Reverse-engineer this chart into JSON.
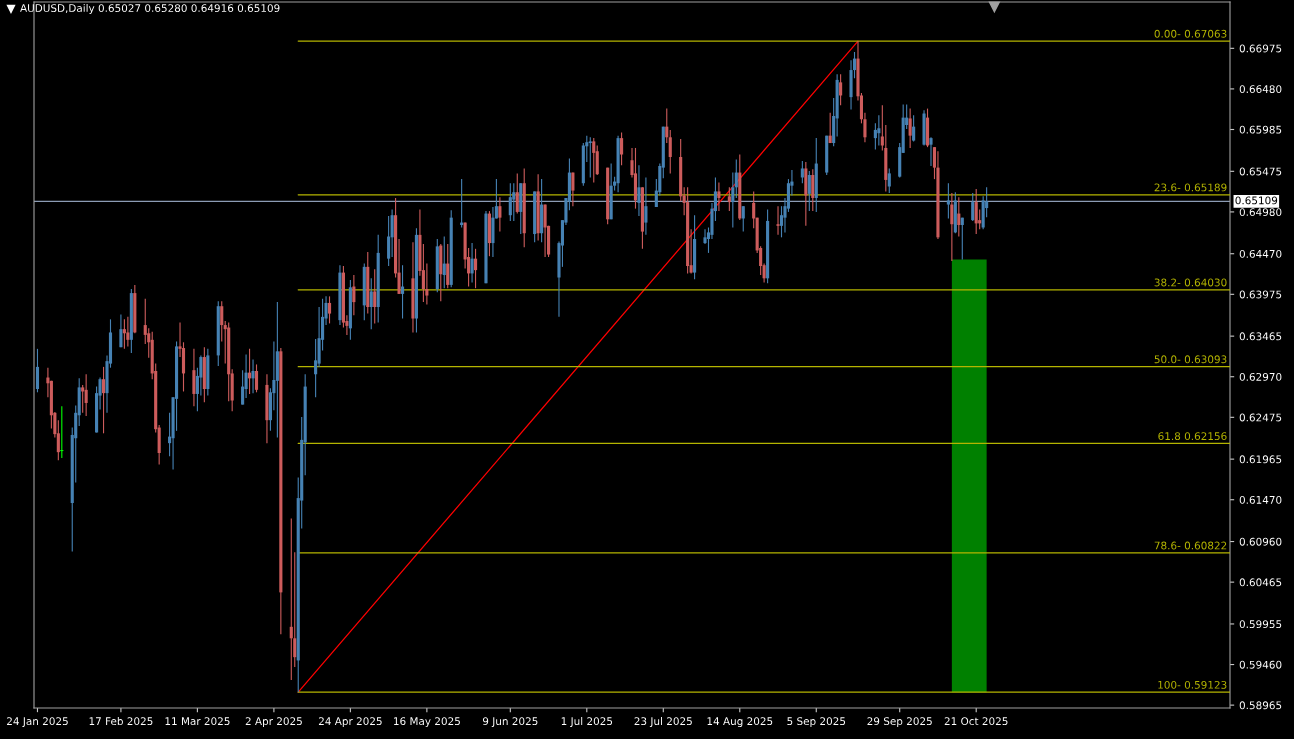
{
  "chart_data": {
    "type": "candlestick",
    "title": "AUDUSD,Daily 0.65027 0.65280 0.64916 0.65109",
    "xlim": [
      "2025-01-23",
      "2026-01-02"
    ],
    "xticks": [
      {
        "value": "2025-01-24",
        "label": "24 Jan 2025"
      },
      {
        "value": "2025-02-17",
        "label": "17 Feb 2025"
      },
      {
        "value": "2025-03-11",
        "label": "11 Mar 2025"
      },
      {
        "value": "2025-04-02",
        "label": "2 Apr 2025"
      },
      {
        "value": "2025-04-24",
        "label": "24 Apr 2025"
      },
      {
        "value": "2025-05-16",
        "label": "16 May 2025"
      },
      {
        "value": "2025-06-09",
        "label": "9 Jun 2025"
      },
      {
        "value": "2025-07-01",
        "label": "1 Jul 2025"
      },
      {
        "value": "2025-07-23",
        "label": "23 Jul 2025"
      },
      {
        "value": "2025-08-14",
        "label": "14 Aug 2025"
      },
      {
        "value": "2025-09-05",
        "label": "5 Sep 2025"
      },
      {
        "value": "2025-09-29",
        "label": "29 Sep 2025"
      },
      {
        "value": "2025-10-21",
        "label": "21 Oct 2025"
      }
    ],
    "ylim": [
      0.5893,
      0.6754
    ],
    "yticks": [
      0.66975,
      {
        "value": 0.6648,
        "label": "0.66480"
      },
      0.65985,
      0.65475,
      {
        "value": 0.6498,
        "label": "0.64980"
      },
      {
        "value": 0.6447,
        "label": "0.64470"
      },
      0.63975,
      0.63465,
      {
        "value": 0.6297,
        "label": "0.62970"
      },
      0.62475,
      0.61965,
      {
        "value": 0.6147,
        "label": "0.61470"
      },
      {
        "value": 0.6096,
        "label": "0.60960"
      },
      0.60465,
      0.59955,
      {
        "value": 0.5946,
        "label": "0.59460"
      },
      0.58965
    ],
    "ref_lines": [
      {
        "axis": "y",
        "value": 0.65109,
        "label": "0.65109",
        "color": "#8c9cb4"
      }
    ],
    "series": [
      {
        "x": [
          "2025-01-24",
          "2025-01-27",
          "2025-01-28",
          "2025-01-29",
          "2025-01-30",
          "2025-01-31",
          "2025-02-03",
          "2025-02-04",
          "2025-02-05",
          "2025-02-06",
          "2025-02-07",
          "2025-02-10",
          "2025-02-11",
          "2025-02-12",
          "2025-02-13",
          "2025-02-14",
          "2025-02-17",
          "2025-02-18",
          "2025-02-19",
          "2025-02-20",
          "2025-02-21",
          "2025-02-24",
          "2025-02-25",
          "2025-02-26",
          "2025-02-27",
          "2025-02-28",
          "2025-03-03",
          "2025-03-04",
          "2025-03-05",
          "2025-03-06",
          "2025-03-07",
          "2025-03-10",
          "2025-03-11",
          "2025-03-12",
          "2025-03-13",
          "2025-03-14",
          "2025-03-17",
          "2025-03-18",
          "2025-03-19",
          "2025-03-20",
          "2025-03-21",
          "2025-03-24",
          "2025-03-25",
          "2025-03-26",
          "2025-03-27",
          "2025-03-28",
          "2025-03-31",
          "2025-04-01",
          "2025-04-02",
          "2025-04-03",
          "2025-04-04",
          "2025-04-07",
          "2025-04-08",
          "2025-04-09",
          "2025-04-10",
          "2025-04-11",
          "2025-04-14",
          "2025-04-15",
          "2025-04-16",
          "2025-04-17",
          "2025-04-18",
          "2025-04-21",
          "2025-04-22",
          "2025-04-23",
          "2025-04-24",
          "2025-04-25",
          "2025-04-28",
          "2025-04-29",
          "2025-04-30",
          "2025-05-01",
          "2025-05-02",
          "2025-05-05",
          "2025-05-06",
          "2025-05-07",
          "2025-05-08",
          "2025-05-09",
          "2025-05-12",
          "2025-05-13",
          "2025-05-14",
          "2025-05-15",
          "2025-05-16",
          "2025-05-19",
          "2025-05-20",
          "2025-05-21",
          "2025-05-22",
          "2025-05-23",
          "2025-05-26",
          "2025-05-27",
          "2025-05-28",
          "2025-05-29",
          "2025-05-30",
          "2025-06-02",
          "2025-06-03",
          "2025-06-04",
          "2025-06-05",
          "2025-06-06",
          "2025-06-09",
          "2025-06-10",
          "2025-06-11",
          "2025-06-12",
          "2025-06-13",
          "2025-06-16",
          "2025-06-17",
          "2025-06-18",
          "2025-06-19",
          "2025-06-20",
          "2025-06-23",
          "2025-06-24",
          "2025-06-25",
          "2025-06-26",
          "2025-06-27",
          "2025-06-30",
          "2025-07-01",
          "2025-07-02",
          "2025-07-03",
          "2025-07-04",
          "2025-07-07",
          "2025-07-08",
          "2025-07-09",
          "2025-07-10",
          "2025-07-11",
          "2025-07-14",
          "2025-07-15",
          "2025-07-16",
          "2025-07-17",
          "2025-07-18",
          "2025-07-21",
          "2025-07-22",
          "2025-07-23",
          "2025-07-24",
          "2025-07-25",
          "2025-07-28",
          "2025-07-29",
          "2025-07-30",
          "2025-07-31",
          "2025-08-01",
          "2025-08-04",
          "2025-08-05",
          "2025-08-06",
          "2025-08-07",
          "2025-08-08",
          "2025-08-11",
          "2025-08-12",
          "2025-08-13",
          "2025-08-14",
          "2025-08-15",
          "2025-08-18",
          "2025-08-19",
          "2025-08-20",
          "2025-08-21",
          "2025-08-22",
          "2025-08-25",
          "2025-08-26",
          "2025-08-27",
          "2025-08-28",
          "2025-08-29",
          "2025-09-01",
          "2025-09-02",
          "2025-09-03",
          "2025-09-04",
          "2025-09-05",
          "2025-09-08",
          "2025-09-09",
          "2025-09-10",
          "2025-09-11",
          "2025-09-12",
          "2025-09-15",
          "2025-09-16",
          "2025-09-17",
          "2025-09-18",
          "2025-09-19",
          "2025-09-22",
          "2025-09-23",
          "2025-09-24",
          "2025-09-25",
          "2025-09-26",
          "2025-09-29",
          "2025-09-30",
          "2025-10-01",
          "2025-10-02",
          "2025-10-03",
          "2025-10-06",
          "2025-10-07",
          "2025-10-08",
          "2025-10-09",
          "2025-10-10",
          "2025-10-13",
          "2025-10-14",
          "2025-10-15",
          "2025-10-16",
          "2025-10-17",
          "2025-10-20",
          "2025-10-21",
          "2025-10-22",
          "2025-10-23",
          "2025-10-24"
        ],
        "ohlc": [
          [
            0.6282,
            0.6331,
            0.6278,
            0.6309
          ],
          [
            0.6296,
            0.6308,
            0.6272,
            0.6289
          ],
          [
            0.6292,
            0.6292,
            0.6234,
            0.625
          ],
          [
            0.6253,
            0.6254,
            0.6223,
            0.6227
          ],
          [
            0.6228,
            0.6244,
            0.6195,
            0.6205
          ],
          [
            0.6207,
            0.6261,
            0.6198,
            0.6207
          ],
          [
            0.6143,
            0.6235,
            0.6084,
            0.6226
          ],
          [
            0.6222,
            0.6262,
            0.6168,
            0.6253
          ],
          [
            0.625,
            0.6295,
            0.6237,
            0.6284
          ],
          [
            0.6284,
            0.6287,
            0.6253,
            0.6279
          ],
          [
            0.6281,
            0.63,
            0.6249,
            0.6265
          ],
          [
            0.6229,
            0.6285,
            0.6229,
            0.6277
          ],
          [
            0.6274,
            0.6296,
            0.6257,
            0.6294
          ],
          [
            0.6294,
            0.6309,
            0.6228,
            0.6277
          ],
          [
            0.6277,
            0.6323,
            0.6253,
            0.6316
          ],
          [
            0.6313,
            0.6367,
            0.6308,
            0.6351
          ],
          [
            0.6333,
            0.6373,
            0.6333,
            0.6355
          ],
          [
            0.6355,
            0.6367,
            0.6331,
            0.635
          ],
          [
            0.6351,
            0.637,
            0.6334,
            0.6342
          ],
          [
            0.6342,
            0.6404,
            0.6326,
            0.6399
          ],
          [
            0.6399,
            0.6409,
            0.635,
            0.6351
          ],
          [
            0.636,
            0.6392,
            0.6337,
            0.6348
          ],
          [
            0.635,
            0.6356,
            0.632,
            0.6339
          ],
          [
            0.6342,
            0.6352,
            0.6294,
            0.6301
          ],
          [
            0.6304,
            0.6313,
            0.6229,
            0.6233
          ],
          [
            0.6235,
            0.6238,
            0.619,
            0.6204
          ],
          [
            0.6216,
            0.6253,
            0.62,
            0.6224
          ],
          [
            0.6222,
            0.6272,
            0.6184,
            0.6272
          ],
          [
            0.627,
            0.634,
            0.6231,
            0.6334
          ],
          [
            0.6334,
            0.6363,
            0.6321,
            0.6331
          ],
          [
            0.6332,
            0.6339,
            0.6279,
            0.6301
          ],
          [
            0.6305,
            0.6331,
            0.6261,
            0.6276
          ],
          [
            0.6276,
            0.6308,
            0.6255,
            0.6298
          ],
          [
            0.6296,
            0.6323,
            0.6274,
            0.6321
          ],
          [
            0.6321,
            0.6333,
            0.6266,
            0.6282
          ],
          [
            0.6282,
            0.6331,
            0.6274,
            0.6323
          ],
          [
            0.6323,
            0.6389,
            0.631,
            0.6383
          ],
          [
            0.6383,
            0.6389,
            0.634,
            0.636
          ],
          [
            0.636,
            0.6365,
            0.6313,
            0.6355
          ],
          [
            0.6357,
            0.6363,
            0.6267,
            0.63
          ],
          [
            0.6301,
            0.6306,
            0.6255,
            0.6268
          ],
          [
            0.6263,
            0.6305,
            0.6263,
            0.6285
          ],
          [
            0.6282,
            0.6324,
            0.6271,
            0.6302
          ],
          [
            0.6302,
            0.6331,
            0.6276,
            0.6295
          ],
          [
            0.6295,
            0.6318,
            0.6277,
            0.6304
          ],
          [
            0.6304,
            0.6312,
            0.6278,
            0.6281
          ],
          [
            0.6287,
            0.63,
            0.6216,
            0.6244
          ],
          [
            0.6244,
            0.6283,
            0.6231,
            0.6278
          ],
          [
            0.6277,
            0.634,
            0.6256,
            0.6293
          ],
          [
            0.6292,
            0.6388,
            0.6223,
            0.6328
          ],
          [
            0.6328,
            0.6332,
            0.5983,
            0.6034
          ],
          [
            0.5992,
            0.6124,
            0.5927,
            0.5978
          ],
          [
            0.5978,
            0.6083,
            0.5943,
            0.5955
          ],
          [
            0.5951,
            0.6174,
            0.59123,
            0.6149
          ],
          [
            0.6146,
            0.6248,
            0.6112,
            0.622
          ],
          [
            0.6217,
            0.63,
            0.6177,
            0.6285
          ],
          [
            0.63,
            0.6343,
            0.6272,
            0.6317
          ],
          [
            0.6313,
            0.6382,
            0.6309,
            0.6344
          ],
          [
            0.6342,
            0.6392,
            0.6329,
            0.637
          ],
          [
            0.6368,
            0.6395,
            0.636,
            0.6387
          ],
          [
            0.6387,
            0.6395,
            0.6362,
            0.6374
          ],
          [
            0.6366,
            0.6433,
            0.636,
            0.6424
          ],
          [
            0.6424,
            0.6432,
            0.6357,
            0.6363
          ],
          [
            0.6365,
            0.6372,
            0.6348,
            0.6359
          ],
          [
            0.6356,
            0.6415,
            0.6342,
            0.6406
          ],
          [
            0.6407,
            0.6421,
            0.6372,
            0.6388
          ],
          [
            0.6384,
            0.6435,
            0.6366,
            0.6431
          ],
          [
            0.6431,
            0.6449,
            0.6374,
            0.6382
          ],
          [
            0.6382,
            0.6417,
            0.6355,
            0.6401
          ],
          [
            0.6401,
            0.6428,
            0.6362,
            0.6382
          ],
          [
            0.6382,
            0.647,
            0.6363,
            0.6448
          ],
          [
            0.6441,
            0.6493,
            0.6432,
            0.6468
          ],
          [
            0.6467,
            0.6501,
            0.6443,
            0.6494
          ],
          [
            0.6494,
            0.6515,
            0.6418,
            0.6423
          ],
          [
            0.6424,
            0.6465,
            0.6398,
            0.6398
          ],
          [
            0.6398,
            0.6433,
            0.6368,
            0.6407
          ],
          [
            0.6417,
            0.6461,
            0.6351,
            0.6368
          ],
          [
            0.6368,
            0.6478,
            0.6351,
            0.647
          ],
          [
            0.647,
            0.6501,
            0.642,
            0.6426
          ],
          [
            0.6427,
            0.6459,
            0.6388,
            0.6404
          ],
          [
            0.6404,
            0.6435,
            0.6385,
            0.6396
          ],
          [
            0.6404,
            0.6465,
            0.64,
            0.6456
          ],
          [
            0.6457,
            0.6459,
            0.6389,
            0.6422
          ],
          [
            0.6421,
            0.6468,
            0.6405,
            0.6435
          ],
          [
            0.6435,
            0.6459,
            0.6405,
            0.6409
          ],
          [
            0.6409,
            0.65,
            0.6406,
            0.6491
          ],
          [
            0.6482,
            0.6538,
            0.6479,
            0.6485
          ],
          [
            0.6485,
            0.6485,
            0.6429,
            0.644
          ],
          [
            0.6443,
            0.6454,
            0.6407,
            0.6423
          ],
          [
            0.6423,
            0.646,
            0.6412,
            0.6441
          ],
          [
            0.6441,
            0.6453,
            0.6405,
            0.6427
          ],
          [
            0.6411,
            0.6499,
            0.6411,
            0.6496
          ],
          [
            0.6496,
            0.6499,
            0.6444,
            0.646
          ],
          [
            0.646,
            0.6504,
            0.6443,
            0.6491
          ],
          [
            0.649,
            0.6538,
            0.649,
            0.6505
          ],
          [
            0.6505,
            0.6516,
            0.6474,
            0.6491
          ],
          [
            0.6494,
            0.6533,
            0.6487,
            0.6516
          ],
          [
            0.6513,
            0.6533,
            0.6487,
            0.6522
          ],
          [
            0.6522,
            0.6545,
            0.6496,
            0.6498
          ],
          [
            0.6498,
            0.6533,
            0.6471,
            0.6533
          ],
          [
            0.6533,
            0.6551,
            0.6455,
            0.6472
          ],
          [
            0.6471,
            0.6523,
            0.6461,
            0.6523
          ],
          [
            0.6523,
            0.6544,
            0.6463,
            0.6472
          ],
          [
            0.6472,
            0.6538,
            0.6461,
            0.6507
          ],
          [
            0.6507,
            0.6507,
            0.6443,
            0.6479
          ],
          [
            0.6481,
            0.6481,
            0.6443,
            0.6446
          ],
          [
            0.6418,
            0.6462,
            0.637,
            0.646
          ],
          [
            0.6457,
            0.6488,
            0.6431,
            0.6488
          ],
          [
            0.6485,
            0.6515,
            0.6482,
            0.6515
          ],
          [
            0.6511,
            0.6563,
            0.65,
            0.6546
          ],
          [
            0.6546,
            0.6546,
            0.6505,
            0.6524
          ],
          [
            0.6533,
            0.6582,
            0.653,
            0.6579
          ],
          [
            0.6578,
            0.6591,
            0.6559,
            0.6583
          ],
          [
            0.6582,
            0.6589,
            0.654,
            0.6584
          ],
          [
            0.6584,
            0.6588,
            0.6534,
            0.657
          ],
          [
            0.6572,
            0.6579,
            0.6543,
            0.6544
          ],
          [
            0.6552,
            0.6552,
            0.6483,
            0.6489
          ],
          [
            0.6489,
            0.6557,
            0.6489,
            0.653
          ],
          [
            0.653,
            0.6541,
            0.6524,
            0.6535
          ],
          [
            0.6533,
            0.6591,
            0.6522,
            0.6588
          ],
          [
            0.6588,
            0.6595,
            0.6555,
            0.6568
          ],
          [
            0.6561,
            0.6576,
            0.654,
            0.6543
          ],
          [
            0.6545,
            0.6576,
            0.6502,
            0.6512
          ],
          [
            0.6509,
            0.6555,
            0.6493,
            0.6528
          ],
          [
            0.6528,
            0.6528,
            0.6453,
            0.6474
          ],
          [
            0.6485,
            0.654,
            0.647,
            0.6505
          ],
          [
            0.6504,
            0.6538,
            0.6504,
            0.6524
          ],
          [
            0.6522,
            0.6557,
            0.6518,
            0.6554
          ],
          [
            0.6552,
            0.6602,
            0.6539,
            0.6602
          ],
          [
            0.6602,
            0.6624,
            0.6582,
            0.6589
          ],
          [
            0.6589,
            0.6598,
            0.6545,
            0.6565
          ],
          [
            0.6565,
            0.6587,
            0.6511,
            0.6517
          ],
          [
            0.6518,
            0.6528,
            0.6494,
            0.6509
          ],
          [
            0.651,
            0.6528,
            0.6423,
            0.6432
          ],
          [
            0.6433,
            0.6477,
            0.6423,
            0.6424
          ],
          [
            0.6424,
            0.6494,
            0.6416,
            0.6465
          ],
          [
            0.646,
            0.6477,
            0.6459,
            0.6467
          ],
          [
            0.6465,
            0.6479,
            0.6448,
            0.6473
          ],
          [
            0.647,
            0.6509,
            0.6465,
            0.6502
          ],
          [
            0.6499,
            0.654,
            0.6487,
            0.6523
          ],
          [
            0.6523,
            0.6534,
            0.6499,
            0.6515
          ],
          [
            0.6517,
            0.6528,
            0.6499,
            0.651
          ],
          [
            0.651,
            0.6546,
            0.6479,
            0.6528
          ],
          [
            0.6528,
            0.6562,
            0.6515,
            0.6546
          ],
          [
            0.6546,
            0.6568,
            0.6488,
            0.649
          ],
          [
            0.649,
            0.6505,
            0.6474,
            0.6505
          ],
          [
            0.6509,
            0.6523,
            0.6478,
            0.649
          ],
          [
            0.6491,
            0.6491,
            0.6448,
            0.6451
          ],
          [
            0.6454,
            0.6456,
            0.6421,
            0.6432
          ],
          [
            0.6433,
            0.6435,
            0.6412,
            0.6417
          ],
          [
            0.6417,
            0.6501,
            0.6411,
            0.6487
          ],
          [
            0.6483,
            0.6505,
            0.647,
            0.6481
          ],
          [
            0.6481,
            0.6505,
            0.6467,
            0.6494
          ],
          [
            0.6491,
            0.6515,
            0.6473,
            0.6505
          ],
          [
            0.6502,
            0.6538,
            0.6498,
            0.6533
          ],
          [
            0.653,
            0.6549,
            0.6518,
            0.6535
          ],
          [
            0.654,
            0.656,
            0.6533,
            0.6551
          ],
          [
            0.6551,
            0.6559,
            0.6481,
            0.6518
          ],
          [
            0.652,
            0.6548,
            0.6499,
            0.6543
          ],
          [
            0.6543,
            0.655,
            0.6499,
            0.6515
          ],
          [
            0.6515,
            0.6588,
            0.6498,
            0.6557
          ],
          [
            0.6546,
            0.6591,
            0.6543,
            0.6591
          ],
          [
            0.6591,
            0.6619,
            0.6582,
            0.6582
          ],
          [
            0.6582,
            0.6637,
            0.6578,
            0.6615
          ],
          [
            0.6612,
            0.6666,
            0.659,
            0.6659
          ],
          [
            0.6656,
            0.6666,
            0.6628,
            0.664
          ],
          [
            0.6638,
            0.6683,
            0.6623,
            0.6671
          ],
          [
            0.6671,
            0.6693,
            0.6661,
            0.6685
          ],
          [
            0.6685,
            0.67063,
            0.6634,
            0.6639
          ],
          [
            0.664,
            0.6643,
            0.6606,
            0.6611
          ],
          [
            0.6611,
            0.6619,
            0.6583,
            0.6589
          ],
          [
            0.6588,
            0.6606,
            0.6574,
            0.6598
          ],
          [
            0.6594,
            0.6616,
            0.6579,
            0.66
          ],
          [
            0.659,
            0.6628,
            0.6573,
            0.6579
          ],
          [
            0.6576,
            0.6604,
            0.6523,
            0.6537
          ],
          [
            0.6529,
            0.6551,
            0.6521,
            0.6545
          ],
          [
            0.6541,
            0.6582,
            0.654,
            0.6577
          ],
          [
            0.657,
            0.6629,
            0.657,
            0.6613
          ],
          [
            0.6604,
            0.6629,
            0.6599,
            0.6613
          ],
          [
            0.6612,
            0.6624,
            0.6576,
            0.6591
          ],
          [
            0.6585,
            0.6616,
            0.6584,
            0.6602
          ],
          [
            0.658,
            0.6622,
            0.6579,
            0.6618
          ],
          [
            0.6613,
            0.6624,
            0.6577,
            0.6579
          ],
          [
            0.658,
            0.6589,
            0.6554,
            0.6588
          ],
          [
            0.6577,
            0.6577,
            0.6538,
            0.6552
          ],
          [
            0.6552,
            0.6572,
            0.6465,
            0.6467
          ],
          [
            0.6507,
            0.6533,
            0.649,
            0.6512
          ],
          [
            0.6507,
            0.6521,
            0.6438,
            0.6483
          ],
          [
            0.6473,
            0.6522,
            0.6472,
            0.6512
          ],
          [
            0.6496,
            0.6516,
            0.6468,
            0.6482
          ],
          [
            0.6482,
            0.6491,
            0.644,
            0.6491
          ],
          [
            0.6488,
            0.6521,
            0.6487,
            0.651
          ],
          [
            0.651,
            0.6526,
            0.6471,
            0.6484
          ],
          [
            0.6488,
            0.6501,
            0.6477,
            0.6484
          ],
          [
            0.6479,
            0.6517,
            0.6477,
            0.6512
          ],
          [
            0.65027,
            0.6528,
            0.64916,
            0.65109
          ]
        ],
        "colors": [
          "#4682b4",
          "#cd5c5c",
          "#cd5c5c",
          "#cd5c5c",
          "#cd5c5c",
          "#00ff00",
          "#4682b4",
          "#4682b4",
          "#4682b4",
          "#cd5c5c",
          "#cd5c5c",
          "#4682b4",
          "#4682b4",
          "#cd5c5c",
          "#4682b4",
          "#4682b4",
          "#4682b4",
          "#cd5c5c",
          "#cd5c5c",
          "#4682b4",
          "#cd5c5c",
          "#cd5c5c",
          "#cd5c5c",
          "#cd5c5c",
          "#cd5c5c",
          "#cd5c5c",
          "#4682b4",
          "#4682b4",
          "#4682b4",
          "#cd5c5c",
          "#cd5c5c",
          "#cd5c5c",
          "#4682b4",
          "#4682b4",
          "#cd5c5c",
          "#4682b4",
          "#4682b4",
          "#cd5c5c",
          "#cd5c5c",
          "#cd5c5c",
          "#cd5c5c",
          "#4682b4",
          "#4682b4",
          "#cd5c5c",
          "#4682b4",
          "#cd5c5c",
          "#cd5c5c",
          "#4682b4",
          "#4682b4",
          "#4682b4",
          "#cd5c5c",
          "#cd5c5c",
          "#cd5c5c",
          "#4682b4",
          "#4682b4",
          "#4682b4",
          "#4682b4",
          "#4682b4",
          "#4682b4",
          "#4682b4",
          "#cd5c5c",
          "#4682b4",
          "#cd5c5c",
          "#cd5c5c",
          "#4682b4",
          "#cd5c5c",
          "#4682b4",
          "#cd5c5c",
          "#4682b4",
          "#cd5c5c",
          "#4682b4",
          "#4682b4",
          "#4682b4",
          "#cd5c5c",
          "#cd5c5c",
          "#4682b4",
          "#cd5c5c",
          "#4682b4",
          "#cd5c5c",
          "#cd5c5c",
          "#cd5c5c",
          "#4682b4",
          "#cd5c5c",
          "#4682b4",
          "#cd5c5c",
          "#4682b4",
          "#4682b4",
          "#cd5c5c",
          "#cd5c5c",
          "#4682b4",
          "#cd5c5c",
          "#4682b4",
          "#cd5c5c",
          "#4682b4",
          "#4682b4",
          "#cd5c5c",
          "#4682b4",
          "#4682b4",
          "#cd5c5c",
          "#4682b4",
          "#cd5c5c",
          "#4682b4",
          "#cd5c5c",
          "#4682b4",
          "#cd5c5c",
          "#cd5c5c",
          "#4682b4",
          "#4682b4",
          "#4682b4",
          "#4682b4",
          "#cd5c5c",
          "#4682b4",
          "#4682b4",
          "#4682b4",
          "#cd5c5c",
          "#cd5c5c",
          "#cd5c5c",
          "#4682b4",
          "#4682b4",
          "#4682b4",
          "#cd5c5c",
          "#cd5c5c",
          "#cd5c5c",
          "#4682b4",
          "#cd5c5c",
          "#4682b4",
          "#4682b4",
          "#4682b4",
          "#4682b4",
          "#cd5c5c",
          "#cd5c5c",
          "#cd5c5c",
          "#cd5c5c",
          "#cd5c5c",
          "#cd5c5c",
          "#4682b4",
          "#4682b4",
          "#4682b4",
          "#4682b4",
          "#4682b4",
          "#cd5c5c",
          "#cd5c5c",
          "#4682b4",
          "#4682b4",
          "#cd5c5c",
          "#4682b4",
          "#cd5c5c",
          "#cd5c5c",
          "#cd5c5c",
          "#cd5c5c",
          "#4682b4",
          "#cd5c5c",
          "#4682b4",
          "#4682b4",
          "#4682b4",
          "#4682b4",
          "#4682b4",
          "#cd5c5c",
          "#4682b4",
          "#cd5c5c",
          "#4682b4",
          "#4682b4",
          "#cd5c5c",
          "#4682b4",
          "#4682b4",
          "#cd5c5c",
          "#4682b4",
          "#4682b4",
          "#cd5c5c",
          "#cd5c5c",
          "#cd5c5c",
          "#4682b4",
          "#4682b4",
          "#cd5c5c",
          "#cd5c5c",
          "#4682b4",
          "#4682b4",
          "#4682b4",
          "#4682b4",
          "#cd5c5c",
          "#4682b4",
          "#4682b4",
          "#cd5c5c",
          "#4682b4",
          "#cd5c5c",
          "#cd5c5c",
          "#4682b4",
          "#cd5c5c",
          "#4682b4",
          "#cd5c5c",
          "#4682b4",
          "#4682b4",
          "#cd5c5c",
          "#cd5c5c",
          "#4682b4",
          "#4682b4"
        ]
      },
      {
        "type": "line",
        "x": [
          "2025-04-09",
          "2025-09-17"
        ],
        "values": [
          0.59123,
          0.67063
        ],
        "color": "#ff0000"
      },
      {
        "type": "line",
        "name": "0.00- 0.67063",
        "x": [
          "2025-04-09",
          "2026-01-02"
        ],
        "values": [
          0.67063,
          0.67063
        ],
        "color": "#b4b400"
      },
      {
        "type": "line",
        "name": "23.6- 0.65189",
        "x": [
          "2025-04-09",
          "2026-01-02"
        ],
        "values": [
          0.65189,
          0.65189
        ],
        "color": "#b4b400"
      },
      {
        "type": "line",
        "name": "38.2- 0.64030",
        "x": [
          "2025-04-09",
          "2026-01-02"
        ],
        "values": [
          0.6403,
          0.6403
        ],
        "color": "#b4b400"
      },
      {
        "type": "line",
        "name": "50.0- 0.63093",
        "x": [
          "2025-04-09",
          "2026-01-02"
        ],
        "values": [
          0.63093,
          0.63093
        ],
        "color": "#b4b400"
      },
      {
        "type": "line",
        "name": "61.8 0.62156",
        "x": [
          "2025-04-09",
          "2026-01-02"
        ],
        "values": [
          0.62156,
          0.62156
        ],
        "color": "#b4b400"
      },
      {
        "type": "line",
        "name": "78.6- 0.60822",
        "x": [
          "2025-04-09",
          "2026-01-02"
        ],
        "values": [
          0.60822,
          0.60822
        ],
        "color": "#b4b400"
      },
      {
        "type": "line",
        "name": "100- 0.59123",
        "x": [
          "2025-04-09",
          "2026-01-02"
        ],
        "values": [
          0.59123,
          0.59123
        ],
        "color": "#b4b400"
      },
      {
        "type": "bar",
        "x": [
          "2025-10-19"
        ],
        "base": [
          0.59123
        ],
        "values": [
          0.05277
        ],
        "color": "#008000"
      }
    ]
  }
}
